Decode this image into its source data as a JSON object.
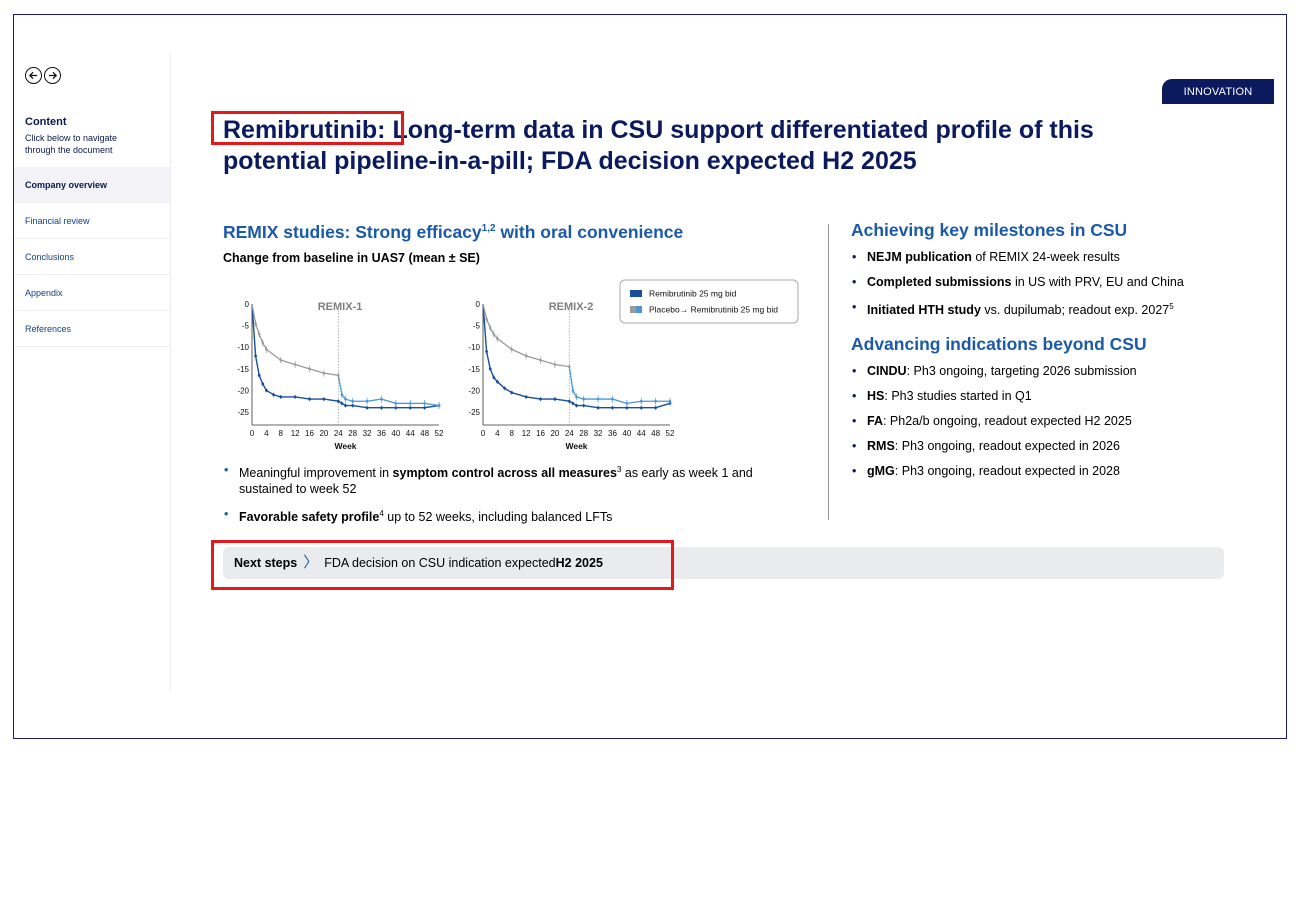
{
  "sidebar": {
    "content_title": "Content",
    "content_subtitle": "Click below to navigate through the document",
    "items": [
      {
        "label": "Company overview",
        "active": true
      },
      {
        "label": "Financial review",
        "active": false
      },
      {
        "label": "Conclusions",
        "active": false
      },
      {
        "label": "Appendix",
        "active": false
      },
      {
        "label": "References",
        "active": false
      }
    ]
  },
  "tag": "INNOVATION",
  "title": {
    "highlight": "Remibrutinib:",
    "rest": " Long-term data in CSU support differentiated profile of this potential pipeline-in-a-pill; FDA decision expected H2 2025"
  },
  "left": {
    "heading_pre": "REMIX studies: Strong efficacy",
    "heading_sup": "1,2",
    "heading_post": " with oral convenience",
    "chart_caption": "Change from baseline in UAS7 (mean ± SE)",
    "bullets": [
      {
        "pre": "Meaningful improvement in ",
        "bold": "symptom control across all measures",
        "sup": "3",
        "post": " as early as week 1 and sustained to week 52"
      },
      {
        "bold": "Favorable safety profile",
        "sup": "4",
        "post": " up to 52 weeks, including balanced LFTs"
      }
    ]
  },
  "chart_data": [
    {
      "type": "line",
      "title": "REMIX-1",
      "xlabel": "Week",
      "ylabel": "",
      "xlim": [
        0,
        52
      ],
      "ylim": [
        -28,
        0
      ],
      "x_ticks": [
        0,
        4,
        8,
        12,
        16,
        20,
        24,
        28,
        32,
        36,
        40,
        44,
        48,
        52
      ],
      "y_ticks": [
        0,
        -5,
        -10,
        -15,
        -20,
        -25
      ],
      "series": [
        {
          "name": "Remibrutinib 25 mg bid",
          "color": "#1a4f9c",
          "x": [
            0,
            1,
            2,
            3,
            4,
            6,
            8,
            12,
            16,
            20,
            24,
            25,
            26,
            28,
            32,
            36,
            40,
            44,
            48,
            52
          ],
          "y": [
            0,
            -12,
            -16.5,
            -18.5,
            -20,
            -21,
            -21.5,
            -21.5,
            -22,
            -22,
            -22.5,
            -23,
            -23.5,
            -23.5,
            -24,
            -24,
            -24,
            -24,
            -24,
            -23.5
          ]
        },
        {
          "name": "Placebo→ Remibrutinib 25 mg bid",
          "color": "#9b9b9b",
          "switch_color": "#4a97d8",
          "x": [
            0,
            1,
            2,
            3,
            4,
            8,
            12,
            16,
            20,
            24,
            25,
            26,
            28,
            32,
            36,
            40,
            44,
            48,
            52
          ],
          "y": [
            0,
            -4.5,
            -7,
            -9,
            -10.5,
            -13,
            -14,
            -15,
            -16,
            -16.5,
            -21,
            -22,
            -22.5,
            -22.5,
            -22,
            -23,
            -23,
            -23,
            -23.5
          ]
        }
      ]
    },
    {
      "type": "line",
      "title": "REMIX-2",
      "xlabel": "Week",
      "ylabel": "",
      "xlim": [
        0,
        52
      ],
      "ylim": [
        -28,
        0
      ],
      "x_ticks": [
        0,
        4,
        8,
        12,
        16,
        20,
        24,
        28,
        32,
        36,
        40,
        44,
        48,
        52
      ],
      "y_ticks": [
        0,
        -5,
        -10,
        -15,
        -20,
        -25
      ],
      "series": [
        {
          "name": "Remibrutinib 25 mg bid",
          "color": "#1a4f9c",
          "x": [
            0,
            1,
            2,
            3,
            4,
            6,
            8,
            12,
            16,
            20,
            24,
            25,
            26,
            28,
            32,
            36,
            40,
            44,
            48,
            52
          ],
          "y": [
            0,
            -11,
            -15,
            -17,
            -18,
            -19.5,
            -20.5,
            -21.5,
            -22,
            -22,
            -22.5,
            -23,
            -23.5,
            -23.5,
            -24,
            -24,
            -24,
            -24,
            -24,
            -23
          ]
        },
        {
          "name": "Placebo→ Remibrutinib 25 mg bid",
          "color": "#9b9b9b",
          "switch_color": "#4a97d8",
          "x": [
            0,
            1,
            2,
            3,
            4,
            8,
            12,
            16,
            20,
            24,
            25,
            26,
            28,
            32,
            36,
            40,
            44,
            48,
            52
          ],
          "y": [
            0,
            -3.5,
            -5.5,
            -7,
            -8,
            -10.5,
            -12,
            -13,
            -14,
            -14.5,
            -20,
            -21.5,
            -22,
            -22,
            -22,
            -23,
            -22.5,
            -22.5,
            -22.5
          ]
        }
      ]
    }
  ],
  "legend": {
    "items": [
      {
        "label": "Remibrutinib 25 mg bid",
        "color": "#1a4f9c"
      },
      {
        "label": "Placebo→ Remibrutinib 25 mg bid",
        "color": "#9b9b9b",
        "color2": "#4a97d8"
      }
    ]
  },
  "right": {
    "heading1": "Achieving key milestones in CSU",
    "milestones": [
      {
        "bold": "NEJM publication",
        "rest": " of REMIX 24-week results",
        "sup": ""
      },
      {
        "bold": "Completed submissions",
        "rest": " in US with PRV, EU and China",
        "sup": ""
      },
      {
        "bold": "Initiated HTH study",
        "rest": " vs. dupilumab; readout exp. 2027",
        "sup": "5"
      }
    ],
    "heading2": "Advancing indications beyond CSU",
    "indications": [
      {
        "bold": "CINDU",
        "rest": ": Ph3 ongoing, targeting 2026 submission"
      },
      {
        "bold": "HS",
        "rest": ": Ph3 studies started in Q1"
      },
      {
        "bold": "FA",
        "rest": ": Ph2a/b ongoing, readout expected H2 2025"
      },
      {
        "bold": "RMS",
        "rest": ": Ph3 ongoing, readout expected in 2026"
      },
      {
        "bold": "gMG",
        "rest": ": Ph3 ongoing, readout expected in 2028"
      }
    ]
  },
  "next_steps": {
    "label": "Next steps",
    "chevron": "〉",
    "text": "FDA decision on CSU indication expected ",
    "bold": "H2 2025"
  }
}
